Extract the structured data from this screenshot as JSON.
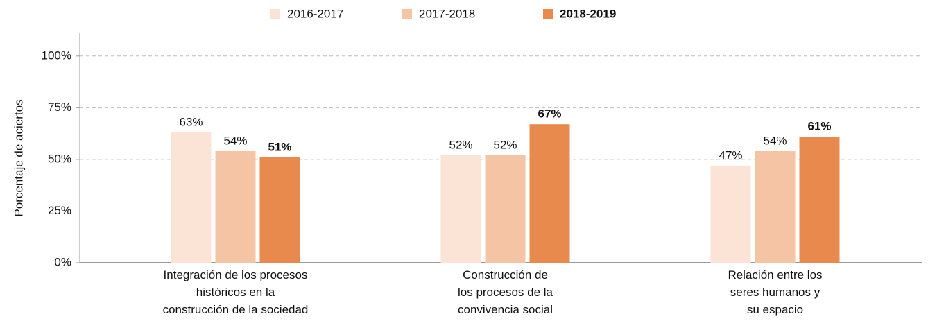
{
  "chart_data": {
    "type": "bar",
    "y_label": "Porcentaje de aciertos",
    "categories": [
      "Integración de los procesos\nhistóricos en la\nconstrucción de la sociedad",
      "Construcción de\nlos procesos de la\nconvivencia social",
      "Relación entre los\nseres humanos y\nsu espacio"
    ],
    "series": [
      {
        "name": "2016-2017",
        "color": "#fbe3d5",
        "values": [
          63,
          52,
          47
        ],
        "value_labels": [
          "63%",
          "52%",
          "47%"
        ]
      },
      {
        "name": "2017-2018",
        "color": "#f4c4a4",
        "values": [
          54,
          52,
          54
        ],
        "value_labels": [
          "54%",
          "52%",
          "54%"
        ]
      },
      {
        "name": "2018-2019",
        "color": "#e8894e",
        "values": [
          51,
          67,
          61
        ],
        "value_labels": [
          "51%",
          "67%",
          "61%"
        ],
        "font_weight": "bold"
      }
    ],
    "ylim": [
      0,
      111
    ],
    "yticks": [
      {
        "value": 0,
        "label": "0%"
      },
      {
        "value": 25,
        "label": "25%"
      },
      {
        "value": 50,
        "label": "50%"
      },
      {
        "value": 75,
        "label": "75%"
      },
      {
        "value": 100,
        "label": "100%"
      }
    ],
    "grid": true,
    "legend": "top"
  }
}
